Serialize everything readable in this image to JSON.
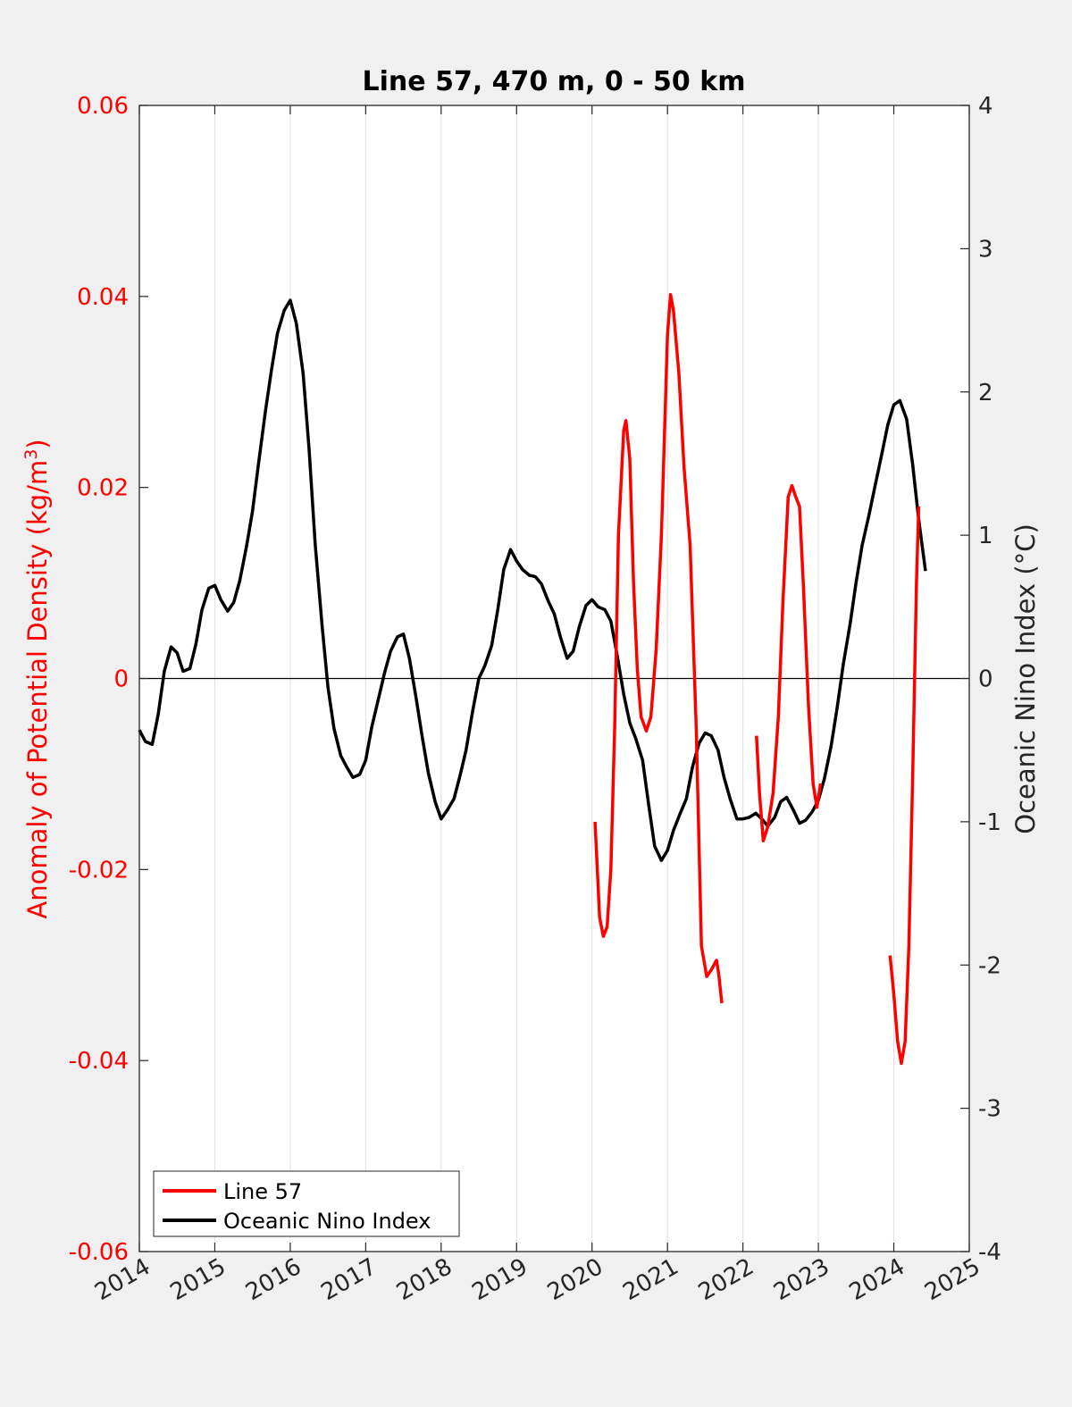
{
  "chart_data": {
    "type": "line",
    "title": "Line 57, 470 m, 0 - 50 km",
    "xlabel": "",
    "ylabel_left": "Anomaly of Potential Density (kg/m",
    "ylabel_left_sup": "3",
    "ylabel_left_end": ")",
    "ylabel_right": "Oceanic Nino Index (°C)",
    "xlim": [
      2014,
      2025
    ],
    "ylim_left": [
      -0.06,
      0.06
    ],
    "ylim_right": [
      -4,
      4
    ],
    "x_ticks": [
      "2014",
      "2015",
      "2016",
      "2017",
      "2018",
      "2019",
      "2020",
      "2021",
      "2022",
      "2023",
      "2024",
      "2025"
    ],
    "y_ticks_left": [
      "0.06",
      "0.04",
      "0.02",
      "0",
      "-0.02",
      "-0.04",
      "-0.06"
    ],
    "y_ticks_right": [
      "4",
      "3",
      "2",
      "1",
      "0",
      "-1",
      "-2",
      "-3",
      "-4"
    ],
    "grid": "vertical",
    "legend_position": "bottom-left",
    "colors": {
      "line57": "#ff0000",
      "oni": "#000000",
      "left_axis": "#ff0000"
    },
    "series": [
      {
        "name": "Line 57",
        "axis": "left",
        "segments": [
          [
            [
              2020.04,
              -0.015
            ],
            [
              2020.1,
              -0.025
            ],
            [
              2020.15,
              -0.027
            ],
            [
              2020.2,
              -0.026
            ],
            [
              2020.25,
              -0.02
            ],
            [
              2020.3,
              -0.005
            ],
            [
              2020.35,
              0.015
            ],
            [
              2020.42,
              0.026
            ],
            [
              2020.45,
              0.027
            ],
            [
              2020.5,
              0.023
            ],
            [
              2020.55,
              0.01
            ],
            [
              2020.6,
              0.001
            ],
            [
              2020.65,
              -0.004
            ],
            [
              2020.72,
              -0.0055
            ],
            [
              2020.78,
              -0.004
            ],
            [
              2020.85,
              0.003
            ],
            [
              2020.92,
              0.015
            ],
            [
              2021.0,
              0.036
            ],
            [
              2021.04,
              0.0402
            ],
            [
              2021.08,
              0.0385
            ],
            [
              2021.15,
              0.032
            ],
            [
              2021.22,
              0.022
            ],
            [
              2021.3,
              0.014
            ],
            [
              2021.38,
              -0.005
            ],
            [
              2021.45,
              -0.028
            ],
            [
              2021.52,
              -0.0312
            ],
            [
              2021.58,
              -0.0305
            ],
            [
              2021.65,
              -0.0295
            ],
            [
              2021.68,
              -0.031
            ],
            [
              2021.72,
              -0.034
            ]
          ],
          [
            [
              2022.18,
              -0.006
            ],
            [
              2022.22,
              -0.012
            ],
            [
              2022.27,
              -0.017
            ],
            [
              2022.33,
              -0.0155
            ],
            [
              2022.4,
              -0.012
            ],
            [
              2022.47,
              -0.004
            ],
            [
              2022.53,
              0.008
            ],
            [
              2022.6,
              0.019
            ],
            [
              2022.65,
              0.0202
            ],
            [
              2022.7,
              0.019
            ],
            [
              2022.75,
              0.018
            ],
            [
              2022.8,
              0.01
            ],
            [
              2022.87,
              -0.003
            ],
            [
              2022.93,
              -0.011
            ],
            [
              2022.98,
              -0.0135
            ],
            [
              2023.03,
              -0.011
            ]
          ],
          [
            [
              2023.95,
              -0.029
            ],
            [
              2024.0,
              -0.033
            ],
            [
              2024.05,
              -0.038
            ],
            [
              2024.1,
              -0.0403
            ],
            [
              2024.15,
              -0.038
            ],
            [
              2024.2,
              -0.028
            ],
            [
              2024.25,
              -0.01
            ],
            [
              2024.3,
              0.01
            ],
            [
              2024.33,
              0.018
            ]
          ]
        ]
      },
      {
        "name": "Oceanic Nino Index",
        "axis": "right",
        "points": [
          [
            2014.0,
            -0.36
          ],
          [
            2014.08,
            -0.44
          ],
          [
            2014.17,
            -0.46
          ],
          [
            2014.25,
            -0.25
          ],
          [
            2014.33,
            0.05
          ],
          [
            2014.42,
            0.22
          ],
          [
            2014.5,
            0.18
          ],
          [
            2014.58,
            0.05
          ],
          [
            2014.67,
            0.07
          ],
          [
            2014.75,
            0.24
          ],
          [
            2014.83,
            0.48
          ],
          [
            2014.92,
            0.63
          ],
          [
            2015.0,
            0.65
          ],
          [
            2015.08,
            0.55
          ],
          [
            2015.17,
            0.47
          ],
          [
            2015.25,
            0.53
          ],
          [
            2015.33,
            0.68
          ],
          [
            2015.42,
            0.92
          ],
          [
            2015.5,
            1.17
          ],
          [
            2015.58,
            1.5
          ],
          [
            2015.67,
            1.86
          ],
          [
            2015.75,
            2.15
          ],
          [
            2015.83,
            2.41
          ],
          [
            2015.92,
            2.57
          ],
          [
            2016.0,
            2.64
          ],
          [
            2016.08,
            2.48
          ],
          [
            2016.17,
            2.13
          ],
          [
            2016.25,
            1.6
          ],
          [
            2016.33,
            0.94
          ],
          [
            2016.42,
            0.38
          ],
          [
            2016.5,
            -0.06
          ],
          [
            2016.58,
            -0.35
          ],
          [
            2016.67,
            -0.54
          ],
          [
            2016.75,
            -0.62
          ],
          [
            2016.83,
            -0.69
          ],
          [
            2016.92,
            -0.67
          ],
          [
            2017.0,
            -0.57
          ],
          [
            2017.08,
            -0.34
          ],
          [
            2017.17,
            -0.14
          ],
          [
            2017.25,
            0.04
          ],
          [
            2017.33,
            0.19
          ],
          [
            2017.42,
            0.29
          ],
          [
            2017.5,
            0.31
          ],
          [
            2017.58,
            0.14
          ],
          [
            2017.67,
            -0.14
          ],
          [
            2017.75,
            -0.41
          ],
          [
            2017.83,
            -0.66
          ],
          [
            2017.92,
            -0.86
          ],
          [
            2018.0,
            -0.98
          ],
          [
            2018.08,
            -0.92
          ],
          [
            2018.17,
            -0.84
          ],
          [
            2018.25,
            -0.68
          ],
          [
            2018.33,
            -0.5
          ],
          [
            2018.42,
            -0.22
          ],
          [
            2018.5,
            0.0
          ],
          [
            2018.58,
            0.09
          ],
          [
            2018.67,
            0.23
          ],
          [
            2018.75,
            0.48
          ],
          [
            2018.83,
            0.76
          ],
          [
            2018.92,
            0.9
          ],
          [
            2019.0,
            0.82
          ],
          [
            2019.08,
            0.76
          ],
          [
            2019.17,
            0.72
          ],
          [
            2019.25,
            0.71
          ],
          [
            2019.33,
            0.66
          ],
          [
            2019.42,
            0.54
          ],
          [
            2019.5,
            0.45
          ],
          [
            2019.58,
            0.29
          ],
          [
            2019.67,
            0.14
          ],
          [
            2019.75,
            0.19
          ],
          [
            2019.83,
            0.36
          ],
          [
            2019.92,
            0.51
          ],
          [
            2020.0,
            0.55
          ],
          [
            2020.08,
            0.5
          ],
          [
            2020.17,
            0.48
          ],
          [
            2020.25,
            0.4
          ],
          [
            2020.33,
            0.17
          ],
          [
            2020.42,
            -0.11
          ],
          [
            2020.5,
            -0.31
          ],
          [
            2020.58,
            -0.42
          ],
          [
            2020.67,
            -0.57
          ],
          [
            2020.75,
            -0.88
          ],
          [
            2020.83,
            -1.17
          ],
          [
            2020.92,
            -1.27
          ],
          [
            2021.0,
            -1.2
          ],
          [
            2021.08,
            -1.06
          ],
          [
            2021.17,
            -0.94
          ],
          [
            2021.25,
            -0.84
          ],
          [
            2021.33,
            -0.62
          ],
          [
            2021.42,
            -0.45
          ],
          [
            2021.5,
            -0.38
          ],
          [
            2021.58,
            -0.4
          ],
          [
            2021.67,
            -0.5
          ],
          [
            2021.75,
            -0.69
          ],
          [
            2021.83,
            -0.84
          ],
          [
            2021.92,
            -0.98
          ],
          [
            2022.0,
            -0.98
          ],
          [
            2022.08,
            -0.97
          ],
          [
            2022.17,
            -0.94
          ],
          [
            2022.25,
            -0.98
          ],
          [
            2022.33,
            -1.03
          ],
          [
            2022.42,
            -0.97
          ],
          [
            2022.5,
            -0.86
          ],
          [
            2022.58,
            -0.83
          ],
          [
            2022.67,
            -0.92
          ],
          [
            2022.75,
            -1.01
          ],
          [
            2022.83,
            -0.99
          ],
          [
            2022.92,
            -0.93
          ],
          [
            2023.0,
            -0.85
          ],
          [
            2023.08,
            -0.7
          ],
          [
            2023.17,
            -0.47
          ],
          [
            2023.25,
            -0.2
          ],
          [
            2023.33,
            0.1
          ],
          [
            2023.42,
            0.38
          ],
          [
            2023.5,
            0.67
          ],
          [
            2023.58,
            0.93
          ],
          [
            2023.67,
            1.14
          ],
          [
            2023.75,
            1.34
          ],
          [
            2023.83,
            1.54
          ],
          [
            2023.92,
            1.77
          ],
          [
            2024.0,
            1.91
          ],
          [
            2024.08,
            1.94
          ],
          [
            2024.17,
            1.81
          ],
          [
            2024.25,
            1.49
          ],
          [
            2024.33,
            1.11
          ],
          [
            2024.42,
            0.75
          ]
        ]
      }
    ]
  }
}
